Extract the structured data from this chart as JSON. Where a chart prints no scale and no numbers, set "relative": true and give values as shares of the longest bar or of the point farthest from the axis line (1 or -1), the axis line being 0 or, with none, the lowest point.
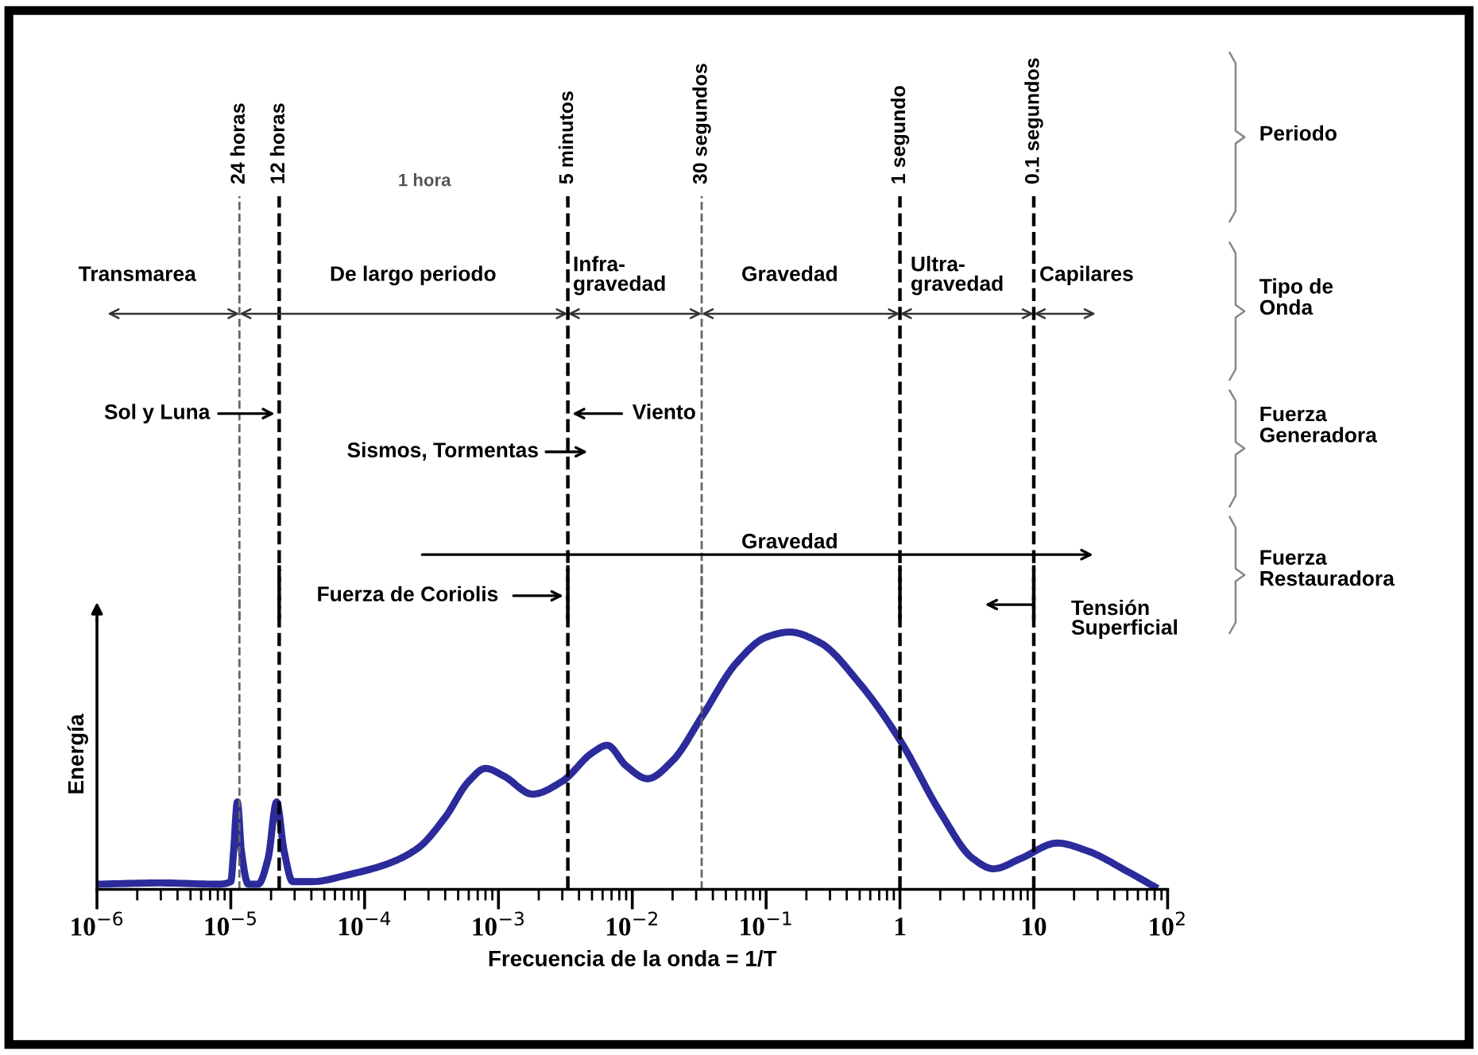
{
  "chart_data": {
    "type": "line",
    "relative": true,
    "xlabel": "Frecuencia de la onda = 1/T",
    "ylabel": "Energía",
    "log": "x",
    "xlim": [
      1e-06,
      100
    ],
    "xticks": [
      {
        "value": 1e-06,
        "label": "10$^{−6}$"
      },
      {
        "value": 1e-05,
        "label": "10$^{−5}$"
      },
      {
        "value": 0.0001,
        "label": "10$^{−4}$"
      },
      {
        "value": 0.001,
        "label": "10$^{−3}$"
      },
      {
        "value": 0.01,
        "label": "10$^{−2}$"
      },
      {
        "value": 0.1,
        "label": "10$^{−1}$"
      },
      1,
      10,
      {
        "value": 100,
        "label": "10$^{2}$"
      }
    ],
    "x": [
      1e-06,
      3e-06,
      8e-06,
      1e-05,
      1.05e-05,
      1.12e-05,
      1.2e-05,
      1.35e-05,
      1.6e-05,
      1.9e-05,
      2.2e-05,
      2.5e-05,
      2.9e-05,
      4e-05,
      8e-05,
      0.00015,
      0.00025,
      0.0004,
      0.0006,
      0.0008,
      0.0011,
      0.0018,
      0.003,
      0.005,
      0.0065,
      0.009,
      0.013,
      0.02,
      0.033,
      0.06,
      0.1,
      0.15,
      0.25,
      0.5,
      1,
      2,
      3.5,
      5,
      8,
      15,
      25,
      50,
      80
    ],
    "series": [
      {
        "color": "#2b2b9c",
        "values": [
          0.02,
          0.025,
          0.02,
          0.03,
          0.15,
          0.34,
          0.15,
          0.02,
          0.02,
          0.12,
          0.34,
          0.15,
          0.03,
          0.03,
          0.06,
          0.1,
          0.16,
          0.28,
          0.42,
          0.47,
          0.44,
          0.37,
          0.42,
          0.53,
          0.56,
          0.48,
          0.43,
          0.5,
          0.67,
          0.88,
          0.98,
          1.0,
          0.96,
          0.8,
          0.58,
          0.3,
          0.12,
          0.08,
          0.12,
          0.18,
          0.15,
          0.07,
          0.01
        ]
      }
    ],
    "ref_lines": [
      {
        "axis": "x",
        "value": 1.16e-05,
        "label": "24 horas",
        "color": "#666666",
        "line_style": "dashed"
      },
      {
        "axis": "x",
        "value": 2.3e-05,
        "label": "12 horas",
        "color": "#000000",
        "line_style": "dashed"
      },
      {
        "axis": "x",
        "value": 0.0033,
        "label": "5 minutos",
        "color": "#000000",
        "line_style": "dashed"
      },
      {
        "axis": "x",
        "value": 0.033,
        "label": "30 segundos",
        "color": "#666666",
        "line_style": "dashed"
      },
      {
        "axis": "x",
        "value": 1,
        "label": "1 segundo",
        "color": "#000000",
        "line_style": "dashed"
      },
      {
        "axis": "x",
        "value": 10,
        "label": "0.1 segundos",
        "color": "#000000",
        "line_style": "dashed"
      }
    ],
    "annotations": [
      "1 hora",
      "Transmarea",
      "De largo periodo",
      "Infra-\ngravedad",
      "Gravedad",
      "Ultra-\ngravedad",
      "Capilares",
      "Sol y Luna",
      "Viento",
      "Sismos, Tormentas",
      "Gravedad",
      "Fuerza de Coriolis",
      "Tensión\nSuperficial",
      "Periodo",
      "Tipo de\nOnda",
      "Fuerza\nGeneradora",
      "Fuerza\nRestauradora"
    ],
    "grid": false,
    "marker": "none",
    "line_style": "solid"
  }
}
